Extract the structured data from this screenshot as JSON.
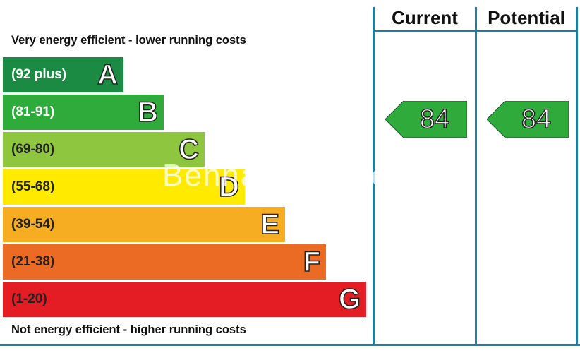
{
  "headers": {
    "current": "Current",
    "potential": "Potential"
  },
  "top_caption": "Very energy efficient - lower running costs",
  "bottom_caption": "Not energy efficient - higher running costs",
  "bands": [
    {
      "range": "(92 plus)",
      "letter": "A",
      "color": "#1b8a43",
      "text_color": "#ffffff"
    },
    {
      "range": "(81-91)",
      "letter": "B",
      "color": "#2fab3c",
      "text_color": "#ffffff"
    },
    {
      "range": "(69-80)",
      "letter": "C",
      "color": "#8ec63f",
      "text_color": "#222222"
    },
    {
      "range": "(55-68)",
      "letter": "D",
      "color": "#ffea00",
      "text_color": "#222222"
    },
    {
      "range": "(39-54)",
      "letter": "E",
      "color": "#f6ad21",
      "text_color": "#222222"
    },
    {
      "range": "(21-38)",
      "letter": "F",
      "color": "#ec6b24",
      "text_color": "#222222"
    },
    {
      "range": "(1-20)",
      "letter": "G",
      "color": "#e31d23",
      "text_color": "#222222"
    }
  ],
  "ratings": {
    "current": {
      "value": "84",
      "color": "#2fab3c"
    },
    "potential": {
      "value": "84",
      "color": "#2fab3c"
    }
  },
  "watermark": "Benham & Reeves"
}
